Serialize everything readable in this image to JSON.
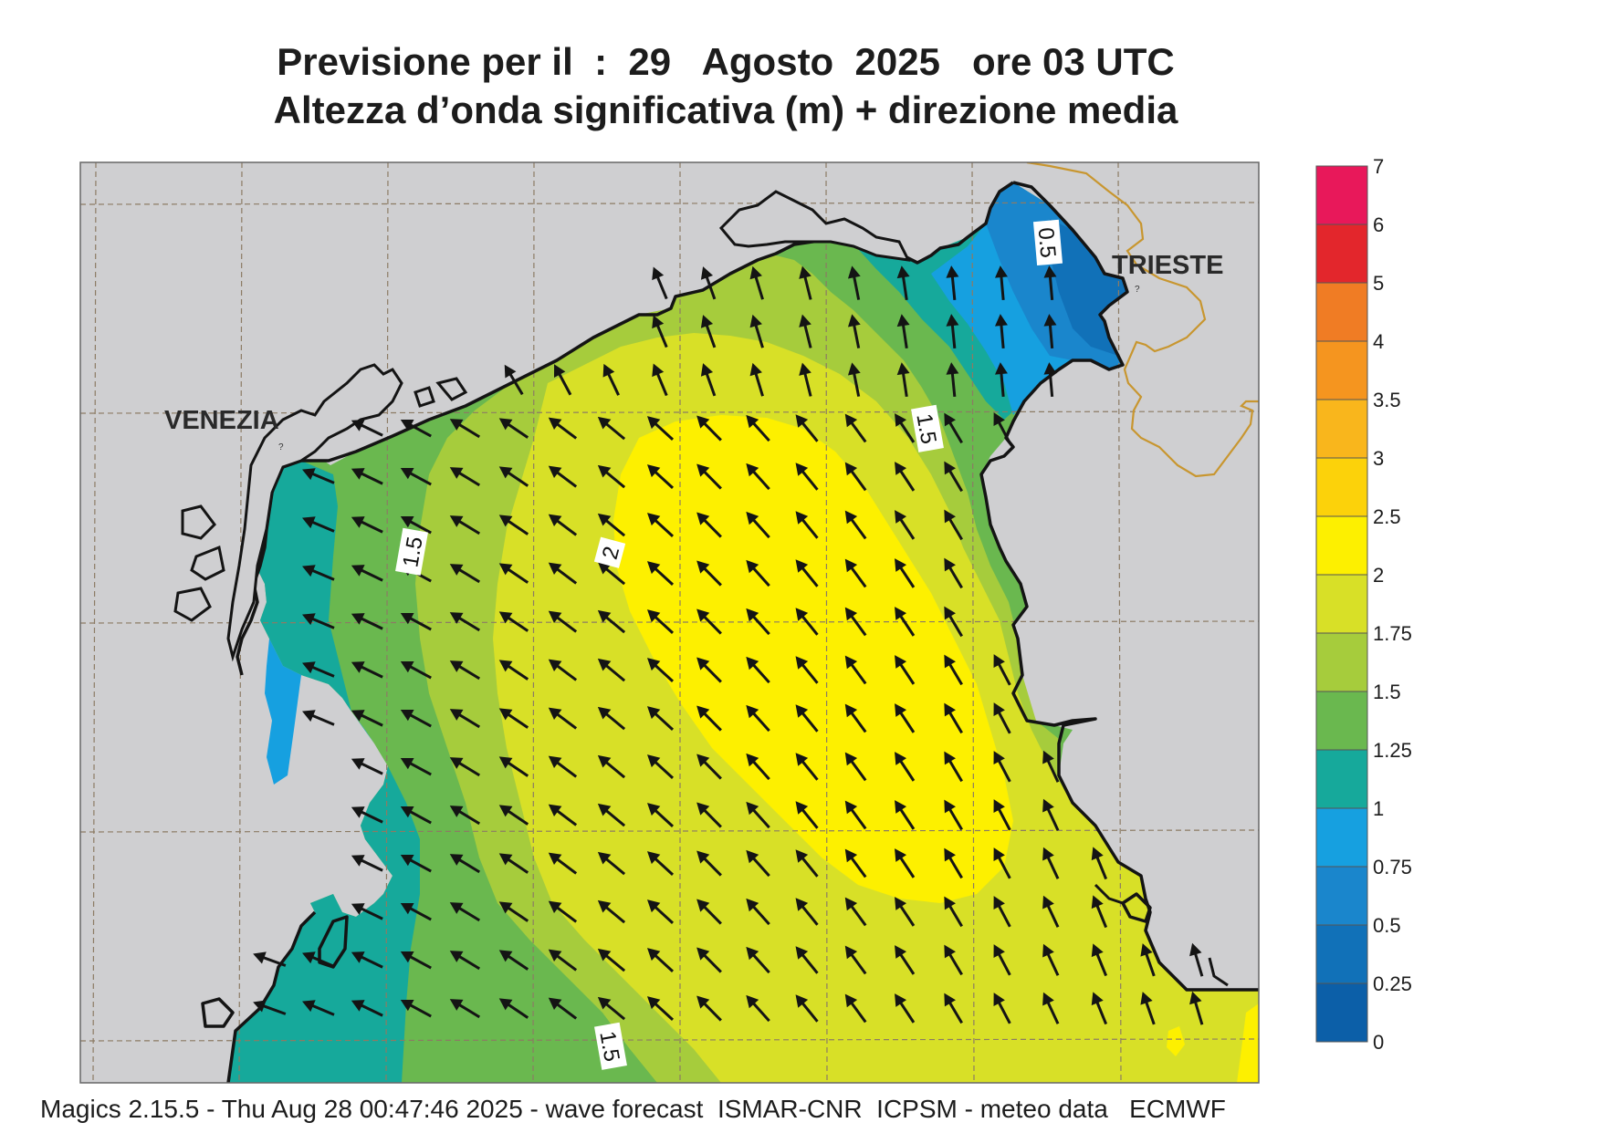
{
  "title_line1": "Previsione per il  :  29   Agosto  2025   ore 03 UTC",
  "title_line2": "Altezza d’onda significativa (m) + direzione media",
  "footer": "Magics 2.15.5 - Thu Aug 28 00:47:46 2025 - wave forecast  ISMAR-CNR  ICPSM - meteo data   ECMWF",
  "places": {
    "venezia": "VENEZIA",
    "trieste": "TRIESTE"
  },
  "contour_labels": [
    "0.5",
    "1.5",
    "1.5",
    "2",
    "1.5"
  ],
  "legend": {
    "ticks": [
      "7",
      "6",
      "5",
      "4",
      "3.5",
      "3",
      "2.5",
      "2",
      "1.75",
      "1.5",
      "1.25",
      "1",
      "0.75",
      "0.5",
      "0.25",
      "0"
    ],
    "colors": [
      "#e8185a",
      "#e3262c",
      "#f07c24",
      "#f5951f",
      "#f9b61c",
      "#fcd20a",
      "#fdf000",
      "#d8e027",
      "#a6cc3c",
      "#6ab84f",
      "#16a99b",
      "#16a0e0",
      "#1a86cc",
      "#1171b8",
      "#0c5fa8"
    ]
  },
  "colors": {
    "land": "#cfcfd1",
    "grid": "#8c7b64",
    "coast": "#141414",
    "border": "#c8962f"
  },
  "wave_direction": "north-west"
}
